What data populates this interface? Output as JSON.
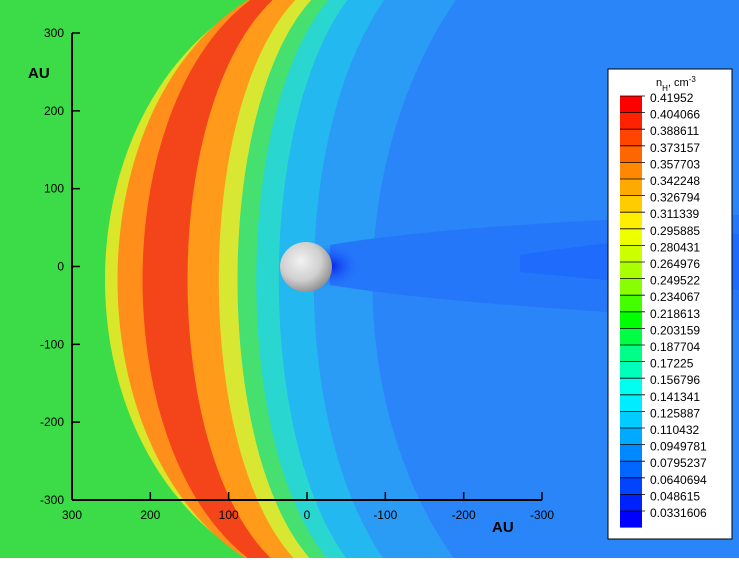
{
  "chart_data": {
    "type": "heatmap",
    "description_free": true,
    "xlabel": "AU",
    "ylabel": "AU",
    "x_ticks": [
      "300",
      "200",
      "100",
      "0",
      "-100",
      "-200",
      "-300"
    ],
    "x_tick_values": [
      300,
      200,
      100,
      0,
      -100,
      -200,
      -300
    ],
    "y_ticks": [
      "300",
      "200",
      "100",
      "0",
      "-100",
      "-200",
      "-300"
    ],
    "y_tick_values": [
      300,
      200,
      100,
      0,
      -100,
      -200,
      -300
    ],
    "xlim": [
      300,
      -300
    ],
    "ylim": [
      -300,
      300
    ],
    "x_reversed": true,
    "legend": {
      "title_base": "n",
      "title_sub": "H",
      "title_rest": ", cm",
      "title_sup": "-3",
      "placement": "right",
      "levels": [
        "0.41952",
        "0.404066",
        "0.388611",
        "0.373157",
        "0.357703",
        "0.342248",
        "0.326794",
        "0.311339",
        "0.295885",
        "0.280431",
        "0.264976",
        "0.249522",
        "0.234067",
        "0.218613",
        "0.203159",
        "0.187704",
        "0.17225",
        "0.156796",
        "0.141341",
        "0.125887",
        "0.110432",
        "0.0949781",
        "0.0795237",
        "0.0640694",
        "0.048615",
        "0.0331606"
      ],
      "colors": [
        "#ff0000",
        "#ff2200",
        "#ff4400",
        "#ff6600",
        "#ff8800",
        "#ffaa00",
        "#ffcc00",
        "#ffee00",
        "#eeff00",
        "#ccff00",
        "#aaff00",
        "#88ff00",
        "#44ff00",
        "#00ff00",
        "#00ff44",
        "#00ff88",
        "#00ffbb",
        "#00ffee",
        "#00eeff",
        "#00ccff",
        "#00aaff",
        "#0088ff",
        "#0066ff",
        "#0044ff",
        "#0022ff",
        "#0000ff"
      ]
    },
    "sphere_center": [
      0,
      0
    ],
    "sphere_radius_au": 33,
    "background_value_color": "#3cdc48"
  }
}
